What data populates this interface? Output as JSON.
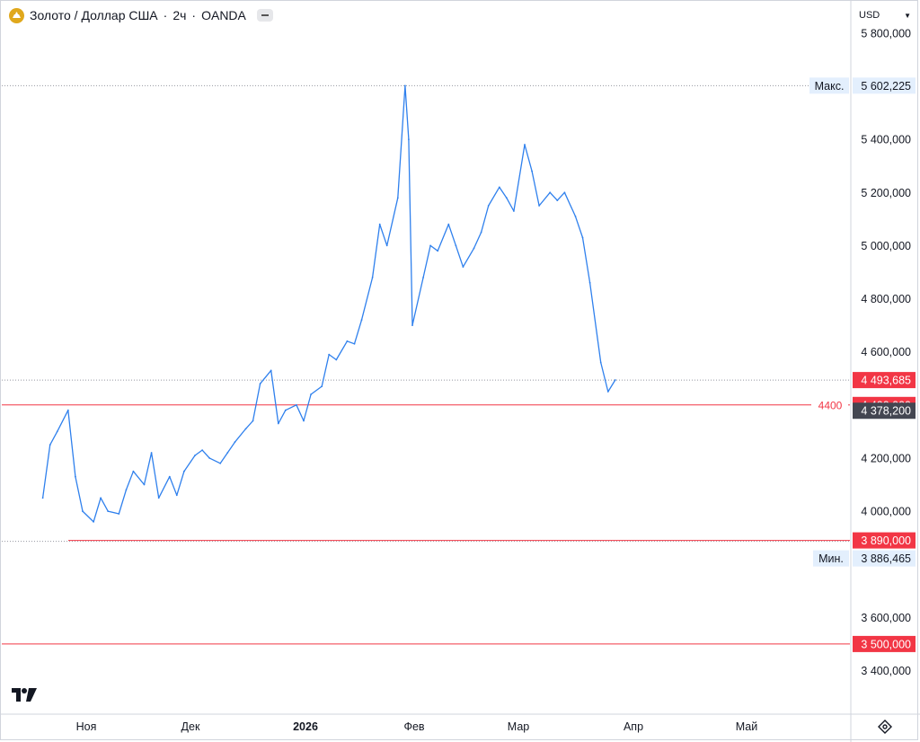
{
  "header": {
    "symbol": "Золото / Доллар США",
    "interval": "2ч",
    "exchange": "OANDA",
    "currency": "USD"
  },
  "colors": {
    "series": "#2f80ed",
    "level_line": "#f23645",
    "max_min_label_bg": "#e3effd",
    "last_price_bg": "#434651",
    "level_label_bg": "#f23645"
  },
  "chart_data": {
    "type": "line",
    "title": "",
    "ylim": [
      3200,
      5850
    ],
    "grid": false,
    "x_ticks": [
      "Ноя",
      "Дек",
      "2026",
      "Фев",
      "Мар",
      "Апр",
      "Май"
    ],
    "y_ticks": [
      "5 800,000",
      "5 400,000",
      "5 200,000",
      "5 000,000",
      "4 800,000",
      "4 600,000",
      "4 200,000",
      "4 000,000",
      "3 600,000",
      "3 400,000"
    ],
    "y_tick_values": [
      5800,
      5400,
      5200,
      5000,
      4800,
      4600,
      4200,
      4000,
      3600,
      3400
    ],
    "series": [
      {
        "x": [
          "2025-10-20",
          "2025-10-22",
          "2025-10-24",
          "2025-10-27",
          "2025-10-29",
          "2025-10-31",
          "2025-11-03",
          "2025-11-05",
          "2025-11-07",
          "2025-11-10",
          "2025-11-12",
          "2025-11-14",
          "2025-11-17",
          "2025-11-19",
          "2025-11-21",
          "2025-11-24",
          "2025-11-26",
          "2025-11-28",
          "2025-12-01",
          "2025-12-03",
          "2025-12-05",
          "2025-12-08",
          "2025-12-10",
          "2025-12-12",
          "2025-12-15",
          "2025-12-17",
          "2025-12-19",
          "2025-12-22",
          "2025-12-24",
          "2025-12-26",
          "2025-12-29",
          "2025-12-31",
          "2026-01-02",
          "2026-01-05",
          "2026-01-07",
          "2026-01-09",
          "2026-01-12",
          "2026-01-14",
          "2026-01-16",
          "2026-01-19",
          "2026-01-21",
          "2026-01-23",
          "2026-01-26",
          "2026-01-28",
          "2026-01-29",
          "2026-01-30",
          "2026-02-02",
          "2026-02-04",
          "2026-02-06",
          "2026-02-09",
          "2026-02-11",
          "2026-02-13",
          "2026-02-16",
          "2026-02-18",
          "2026-02-20",
          "2026-02-23",
          "2026-02-25",
          "2026-02-27",
          "2026-03-02",
          "2026-03-04",
          "2026-03-06",
          "2026-03-09",
          "2026-03-11",
          "2026-03-13",
          "2026-03-16",
          "2026-03-18",
          "2026-03-20",
          "2026-03-23",
          "2026-03-25",
          "2026-03-27"
        ],
        "y": [
          4050,
          4250,
          4300,
          4380,
          4130,
          4000,
          3960,
          4050,
          4000,
          3990,
          4080,
          4150,
          4100,
          4220,
          4050,
          4130,
          4060,
          4150,
          4210,
          4230,
          4200,
          4180,
          4220,
          4260,
          4310,
          4340,
          4480,
          4530,
          4330,
          4380,
          4400,
          4340,
          4440,
          4470,
          4590,
          4570,
          4640,
          4630,
          4720,
          4880,
          5080,
          5000,
          5180,
          5602,
          5400,
          4700,
          4880,
          5000,
          4980,
          5080,
          5000,
          4920,
          4990,
          5050,
          5150,
          5220,
          5180,
          5130,
          5380,
          5280,
          5150,
          5200,
          5170,
          5200,
          5110,
          5030,
          4860,
          4560,
          4450,
          4494
        ]
      }
    ],
    "levels": [
      {
        "value": 4400,
        "label": "4 400,000",
        "line_text": "4400"
      },
      {
        "value": 3890,
        "label": "3 890,000"
      },
      {
        "value": 3500,
        "label": "3 500,000"
      }
    ],
    "high": {
      "label": "Макс.",
      "value": 5602.225,
      "text": "5 602,225"
    },
    "low": {
      "label": "Мин.",
      "value": 3886.465,
      "text": "3 886,465"
    },
    "price_labels": [
      {
        "value": 4493.685,
        "text": "4 493,685"
      },
      {
        "value": 4378.2,
        "text": "4 378,200"
      }
    ]
  }
}
